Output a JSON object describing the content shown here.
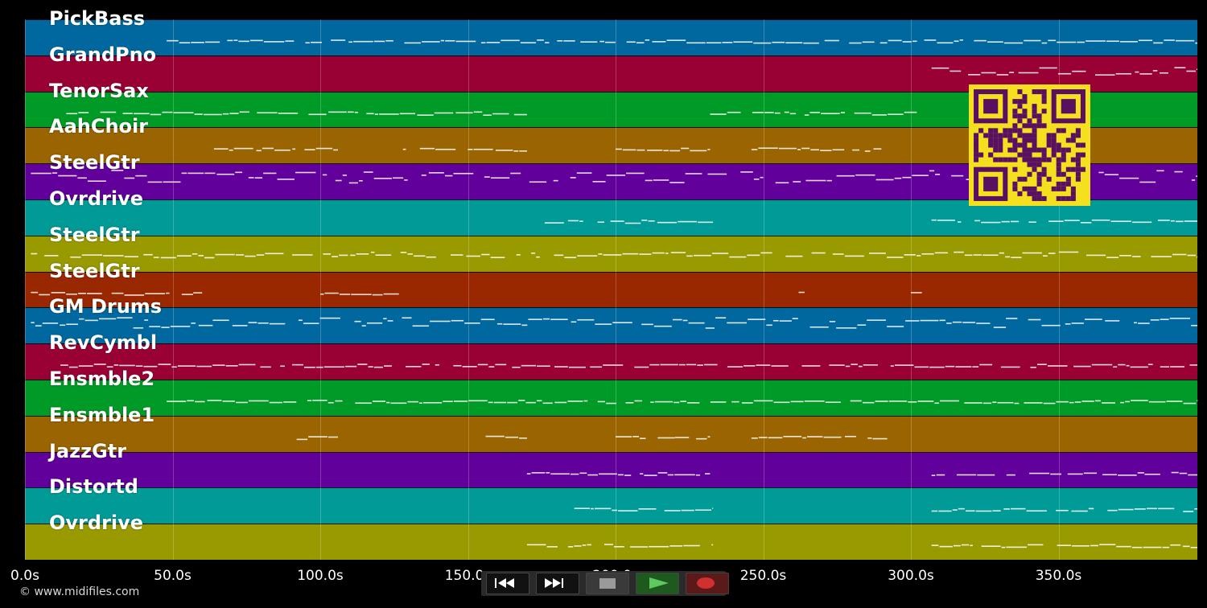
{
  "tracks": [
    {
      "name": "PickBass",
      "color": "#00689f"
    },
    {
      "name": "GrandPno",
      "color": "#990033"
    },
    {
      "name": "TenorSax",
      "color": "#009a26"
    },
    {
      "name": "AahChoir",
      "color": "#9a6400"
    },
    {
      "name": "SteelGtr",
      "color": "#61009a"
    },
    {
      "name": "Ovrdrive",
      "color": "#009a97"
    },
    {
      "name": "SteelGtr",
      "color": "#989a00"
    },
    {
      "name": "SteelGtr",
      "color": "#992700"
    },
    {
      "name": "GM Drums",
      "color": "#00689f"
    },
    {
      "name": "RevCymbl",
      "color": "#990033"
    },
    {
      "name": "Ensmble2",
      "color": "#009a26"
    },
    {
      "name": "Ensmble1",
      "color": "#9a6400"
    },
    {
      "name": "JazzGtr",
      "color": "#61009a"
    },
    {
      "name": "Distortd",
      "color": "#009a97"
    },
    {
      "name": "Ovrdrive",
      "color": "#989a00"
    }
  ],
  "timeline": {
    "ticks": [
      "0.0s",
      "50.0s",
      "100.0s",
      "150.0s",
      "200.0s",
      "250.0s",
      "300.0s",
      "350.0s"
    ],
    "tick_values": [
      0,
      50,
      100,
      150,
      200,
      250,
      300,
      350
    ],
    "duration_seconds": 397
  },
  "transport": {
    "rewind_icon": "rewind-icon",
    "forward_icon": "fast-forward-icon",
    "stop_icon": "stop-icon",
    "play_icon": "play-icon",
    "record_icon": "record-icon",
    "play_color": "#5fc85f",
    "record_color": "#d03030"
  },
  "qr_icon": "qr-code-icon",
  "qr_color": "#f5e020",
  "copyright": "© www.midifiles.com"
}
